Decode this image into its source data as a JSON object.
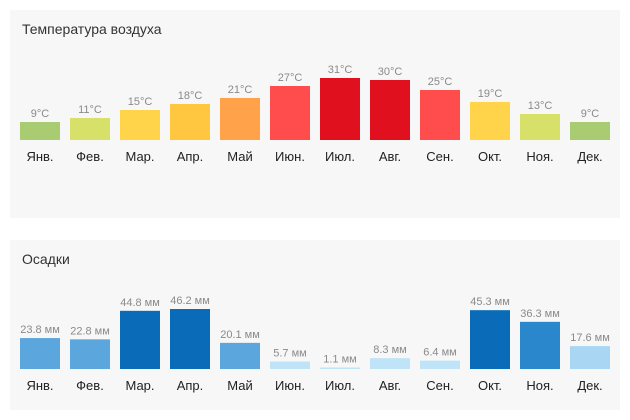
{
  "chart_data": [
    {
      "type": "bar",
      "title": "Температура воздуха",
      "categories": [
        "Янв.",
        "Фев.",
        "Мар.",
        "Апр.",
        "Май",
        "Июн.",
        "Июл.",
        "Авг.",
        "Сен.",
        "Окт.",
        "Ноя.",
        "Дек."
      ],
      "values": [
        9,
        11,
        15,
        18,
        21,
        27,
        31,
        30,
        25,
        19,
        13,
        9
      ],
      "labels": [
        "9°C",
        "11°C",
        "15°C",
        "18°C",
        "21°C",
        "27°C",
        "31°C",
        "30°C",
        "25°C",
        "19°C",
        "13°C",
        "9°C"
      ],
      "colors": [
        "#a9cb72",
        "#d7e16a",
        "#ffd34a",
        "#ffc740",
        "#ffa24a",
        "#ff4d4d",
        "#e0101e",
        "#e0101e",
        "#ff4d4d",
        "#ffd34a",
        "#d7e16a",
        "#a9cb72"
      ],
      "xlabel": "",
      "ylabel": ""
    },
    {
      "type": "bar",
      "title": "Осадки",
      "categories": [
        "Янв.",
        "Фев.",
        "Мар.",
        "Апр.",
        "Май",
        "Июн.",
        "Июл.",
        "Авг.",
        "Сен.",
        "Окт.",
        "Ноя.",
        "Дек."
      ],
      "values": [
        23.8,
        22.8,
        44.8,
        46.2,
        20.1,
        5.7,
        1.1,
        8.3,
        6.4,
        45.3,
        36.3,
        17.6
      ],
      "labels": [
        "23.8 мм",
        "22.8 мм",
        "44.8 мм",
        "46.2 мм",
        "20.1 мм",
        "5.7 мм",
        "1.1 мм",
        "8.3 мм",
        "6.4 мм",
        "45.3 мм",
        "36.3 мм",
        "17.6 мм"
      ],
      "colors": [
        "#5ba7dd",
        "#5ba7dd",
        "#0a6cb8",
        "#0a6cb8",
        "#5ba7dd",
        "#bfe3f7",
        "#bfe3f7",
        "#bfe3f7",
        "#bfe3f7",
        "#0a6cb8",
        "#2b87cc",
        "#a9d6f3"
      ],
      "xlabel": "",
      "ylabel": ""
    }
  ]
}
